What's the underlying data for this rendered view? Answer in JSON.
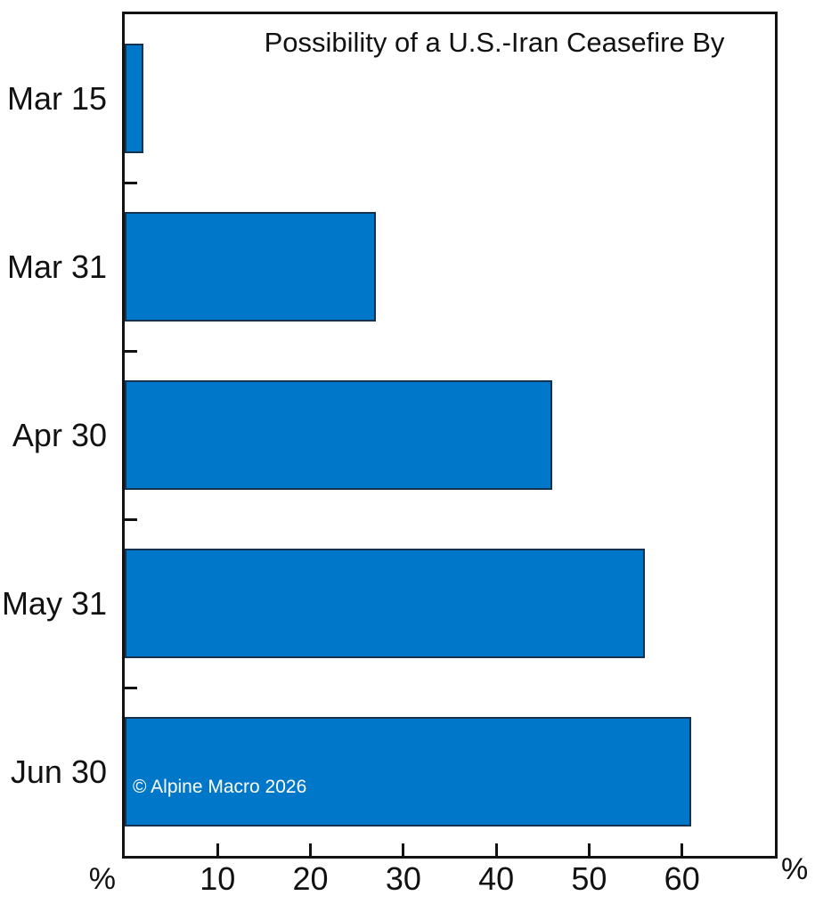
{
  "chart_data": {
    "type": "bar",
    "orientation": "horizontal",
    "title": "Possibility of a U.S.-Iran Ceasefire By",
    "categories": [
      "Mar 15",
      "Mar 31",
      "Apr 30",
      "May 31",
      "Jun 30"
    ],
    "values": [
      2,
      27,
      46,
      56,
      61
    ],
    "xlim": [
      0,
      70
    ],
    "xticks": [
      10,
      20,
      30,
      40,
      50,
      60
    ],
    "x_unit_left": "%",
    "x_unit_right": "%",
    "ylabel": "",
    "xlabel": "",
    "grid": false,
    "legend": null,
    "bar_color": "#0077c8",
    "bar_border_color": "#16324f",
    "axis_color": "#121212",
    "text_color": "#111111",
    "watermark": "© Alpine Macro 2026",
    "watermark_color": "#ffffff"
  }
}
